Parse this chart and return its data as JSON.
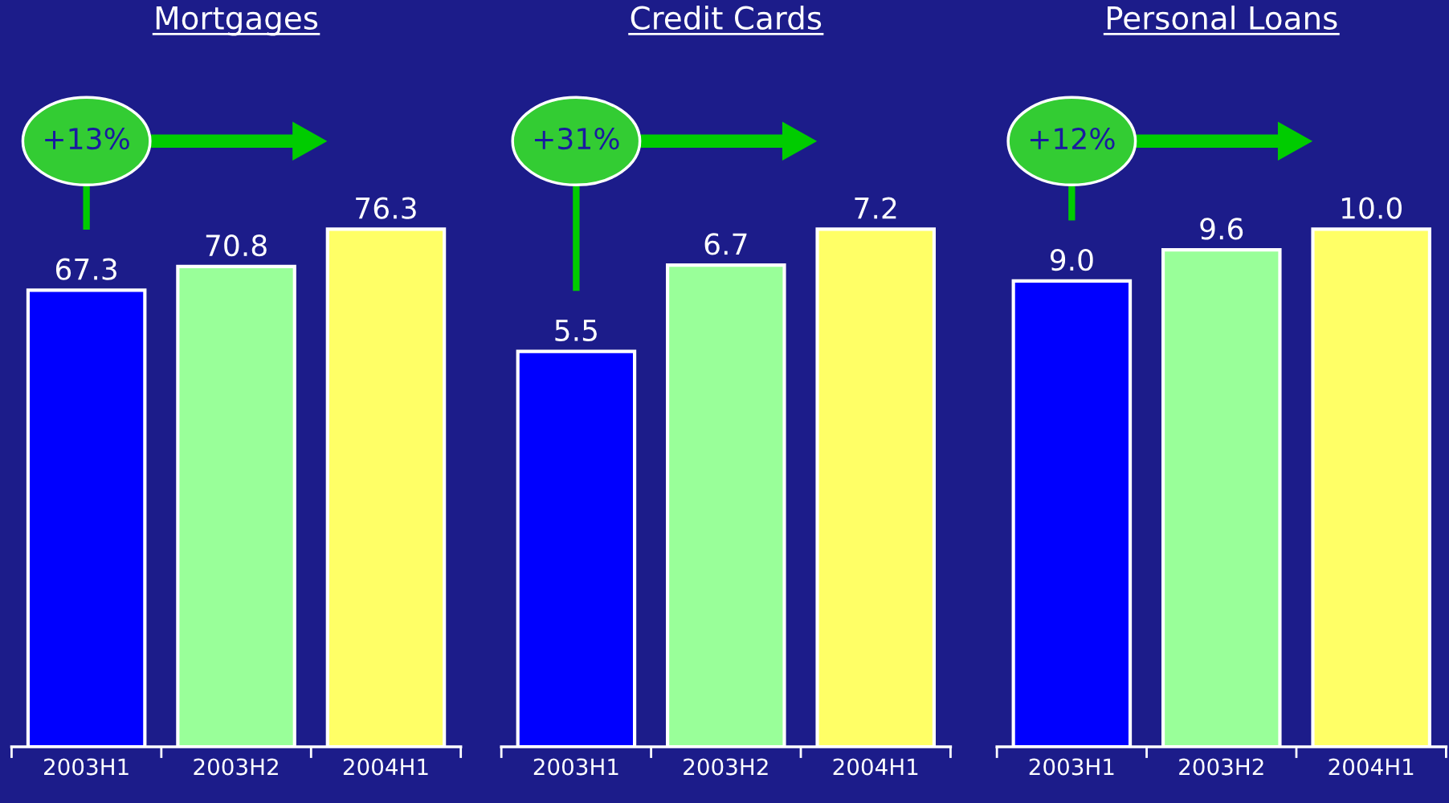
{
  "chart_data": [
    {
      "type": "bar",
      "title": "Mortgages",
      "categories": [
        "2003H1",
        "2003H2",
        "2004H1"
      ],
      "values": [
        67.3,
        70.8,
        76.3
      ],
      "value_labels": [
        "67.3",
        "70.8",
        "76.3"
      ],
      "colors": [
        "#0000ff",
        "#99ff99",
        "#ffff66"
      ],
      "tick_labels": "x",
      "grid": false,
      "legend": false,
      "annotations": [
        "+13%"
      ]
    },
    {
      "type": "bar",
      "title": "Credit Cards",
      "categories": [
        "2003H1",
        "2003H2",
        "2004H1"
      ],
      "values": [
        5.5,
        6.7,
        7.2
      ],
      "value_labels": [
        "5.5",
        "6.7",
        "7.2"
      ],
      "colors": [
        "#0000ff",
        "#99ff99",
        "#ffff66"
      ],
      "tick_labels": "x",
      "grid": false,
      "legend": false,
      "annotations": [
        "+31%"
      ]
    },
    {
      "type": "bar",
      "title": "Personal Loans",
      "categories": [
        "2003H1",
        "2003H2",
        "2004H1"
      ],
      "values": [
        9.0,
        9.6,
        10.0
      ],
      "value_labels": [
        "9.0",
        "9.6",
        "10.0"
      ],
      "colors": [
        "#0000ff",
        "#99ff99",
        "#ffff66"
      ],
      "tick_labels": "x",
      "grid": false,
      "legend": false,
      "annotations": [
        "+12%"
      ]
    }
  ]
}
